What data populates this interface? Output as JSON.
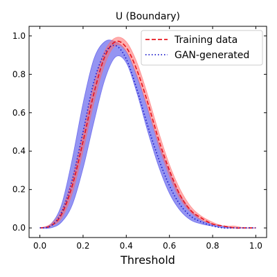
{
  "chart_data": {
    "type": "line",
    "title": "U (Boundary)",
    "xlabel": "Threshold",
    "ylabel": "",
    "xlim": [
      -0.05,
      1.05
    ],
    "ylim": [
      -0.05,
      1.05
    ],
    "xticks": [
      0.0,
      0.2,
      0.4,
      0.6,
      0.8,
      1.0
    ],
    "yticks": [
      0.0,
      0.2,
      0.4,
      0.6,
      0.8,
      1.0
    ],
    "xtick_labels": [
      "0.0",
      "0.2",
      "0.4",
      "0.6",
      "0.8",
      "1.0"
    ],
    "ytick_labels": [
      "0.0",
      "0.2",
      "0.4",
      "0.6",
      "0.8",
      "1.0"
    ],
    "grid": false,
    "legend_position": "top-right",
    "x": [
      0.0,
      0.05,
      0.1,
      0.15,
      0.2,
      0.25,
      0.3,
      0.35,
      0.4,
      0.45,
      0.5,
      0.55,
      0.6,
      0.65,
      0.7,
      0.75,
      0.8,
      0.85,
      0.9,
      0.95,
      1.0
    ],
    "series": [
      {
        "name": "Training data",
        "color": "#e8161f",
        "dash": "dashed",
        "values": [
          0.0,
          0.01,
          0.07,
          0.22,
          0.45,
          0.7,
          0.89,
          0.97,
          0.94,
          0.82,
          0.65,
          0.46,
          0.3,
          0.17,
          0.09,
          0.05,
          0.02,
          0.01,
          0.0,
          0.0,
          0.0
        ],
        "band_low": [
          0.0,
          0.01,
          0.05,
          0.18,
          0.4,
          0.65,
          0.85,
          0.95,
          0.92,
          0.79,
          0.62,
          0.43,
          0.27,
          0.15,
          0.08,
          0.04,
          0.02,
          0.01,
          0.0,
          0.0,
          0.0
        ],
        "band_high": [
          0.0,
          0.02,
          0.09,
          0.26,
          0.5,
          0.75,
          0.92,
          0.99,
          0.97,
          0.86,
          0.69,
          0.5,
          0.33,
          0.2,
          0.11,
          0.06,
          0.03,
          0.01,
          0.01,
          0.0,
          0.0
        ],
        "band_color": "#ff6b6b"
      },
      {
        "name": "GAN-generated",
        "color": "#1a1acb",
        "dash": "dotted",
        "values": [
          0.0,
          0.01,
          0.08,
          0.25,
          0.5,
          0.76,
          0.91,
          0.95,
          0.88,
          0.72,
          0.53,
          0.36,
          0.22,
          0.12,
          0.06,
          0.03,
          0.01,
          0.0,
          0.0,
          0.0,
          0.0
        ],
        "band_low": [
          0.0,
          0.0,
          0.03,
          0.12,
          0.31,
          0.55,
          0.77,
          0.89,
          0.86,
          0.7,
          0.5,
          0.32,
          0.18,
          0.09,
          0.04,
          0.02,
          0.01,
          0.0,
          0.0,
          0.0,
          0.0
        ],
        "band_high": [
          0.0,
          0.02,
          0.12,
          0.36,
          0.65,
          0.88,
          0.97,
          0.97,
          0.92,
          0.79,
          0.62,
          0.44,
          0.29,
          0.17,
          0.09,
          0.04,
          0.02,
          0.01,
          0.0,
          0.0,
          0.0
        ],
        "band_color": "#3d3de8"
      }
    ]
  }
}
